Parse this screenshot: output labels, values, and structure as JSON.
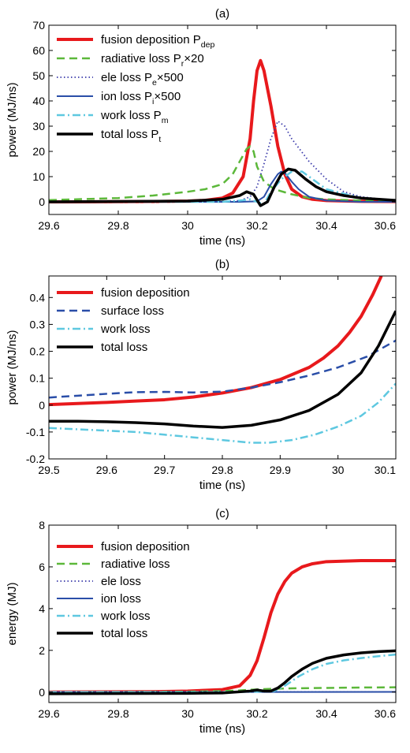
{
  "chart_data": [
    {
      "type": "line",
      "title": "(a)",
      "xlabel": "time (ns)",
      "ylabel": "power (MJ/ns)",
      "xlim": [
        29.6,
        30.6
      ],
      "ylim": [
        -5,
        70
      ],
      "xticks": [
        29.6,
        29.8,
        30,
        30.2,
        30.4,
        30.6
      ],
      "xtick_labels": [
        "29.6",
        "29.8",
        "30",
        "30.2",
        "30.4",
        "30.6"
      ],
      "yticks": [
        0,
        10,
        20,
        30,
        40,
        50,
        60,
        70
      ],
      "ytick_labels": [
        "0",
        "10",
        "20",
        "30",
        "40",
        "50",
        "60",
        "70"
      ],
      "grid": false,
      "legend_position": "top-left",
      "series": [
        {
          "name": "fusion deposition P",
          "sub": "dep",
          "suffix": "",
          "color": "#e8191c",
          "dash": "solid",
          "width": 4,
          "x": [
            29.6,
            29.9,
            30.0,
            30.05,
            30.1,
            30.13,
            30.16,
            30.18,
            30.19,
            30.2,
            30.21,
            30.22,
            30.24,
            30.26,
            30.28,
            30.3,
            30.33,
            30.36,
            30.4,
            30.5,
            30.6
          ],
          "y": [
            0,
            0.1,
            0.3,
            0.6,
            1.5,
            3.5,
            10,
            25,
            40,
            52,
            56,
            52,
            38,
            22,
            11,
            5,
            2,
            1,
            0.5,
            0.2,
            0.1
          ]
        },
        {
          "name": "radiative loss P",
          "sub": "r",
          "suffix": "×20",
          "color": "#5cb83a",
          "dash": "10,6",
          "width": 2.5,
          "x": [
            29.6,
            29.8,
            29.9,
            30.0,
            30.05,
            30.1,
            30.13,
            30.15,
            30.17,
            30.18,
            30.19,
            30.2,
            30.22,
            30.25,
            30.3,
            30.35,
            30.4,
            30.5,
            30.6
          ],
          "y": [
            0.7,
            1.5,
            2.5,
            4,
            5,
            7,
            11,
            16,
            21,
            22,
            20,
            14,
            8,
            5,
            3,
            1.5,
            1,
            0.5,
            0.3
          ]
        },
        {
          "name": "ele loss P",
          "sub": "e",
          "suffix": "×500",
          "color": "#3a3aaa",
          "dash": "1.5,3",
          "width": 1.8,
          "x": [
            29.6,
            30.1,
            30.15,
            30.18,
            30.2,
            30.22,
            30.24,
            30.26,
            30.28,
            30.3,
            30.35,
            30.4,
            30.45,
            30.5,
            30.6
          ],
          "y": [
            0,
            0.1,
            0.5,
            2,
            6,
            15,
            25,
            32,
            30,
            25,
            16,
            9,
            4,
            2,
            0.5
          ]
        },
        {
          "name": "ion loss P",
          "sub": "i",
          "suffix": "×500",
          "color": "#2a4ea8",
          "dash": "solid",
          "width": 2,
          "x": [
            29.6,
            30.15,
            30.2,
            30.22,
            30.24,
            30.26,
            30.27,
            30.28,
            30.3,
            30.32,
            30.35,
            30.4,
            30.5,
            30.6
          ],
          "y": [
            0,
            0,
            0.2,
            2,
            7,
            11,
            12,
            11.5,
            8,
            5,
            2,
            0.5,
            0,
            0
          ]
        },
        {
          "name": "work loss P",
          "sub": "m",
          "suffix": "",
          "color": "#5ec8e0",
          "dash": "10,4,2,4",
          "width": 2.5,
          "x": [
            29.6,
            30.1,
            30.15,
            30.18,
            30.2,
            30.22,
            30.24,
            30.27,
            30.3,
            30.33,
            30.37,
            30.4,
            30.5,
            30.6
          ],
          "y": [
            0,
            0,
            0.5,
            1,
            0,
            -1,
            4,
            9,
            12,
            12,
            8,
            5,
            1.5,
            0.5
          ]
        },
        {
          "name": "total loss P",
          "sub": "t",
          "suffix": "",
          "color": "#000000",
          "dash": "solid",
          "width": 3.5,
          "x": [
            29.6,
            30.0,
            30.1,
            30.15,
            30.17,
            30.19,
            30.21,
            30.23,
            30.25,
            30.27,
            30.29,
            30.31,
            30.34,
            30.37,
            30.4,
            30.45,
            30.5,
            30.6
          ],
          "y": [
            0,
            0.3,
            1,
            2.5,
            4,
            3,
            -1.5,
            0,
            6,
            11,
            13,
            12.5,
            9,
            6,
            4,
            2.5,
            1.5,
            0.6
          ]
        }
      ]
    },
    {
      "type": "line",
      "title": "(b)",
      "xlabel": "time (ns)",
      "ylabel": "power (MJ/ns)",
      "xlim": [
        29.5,
        30.1
      ],
      "ylim": [
        -0.2,
        0.48
      ],
      "xticks": [
        29.5,
        29.6,
        29.7,
        29.8,
        29.9,
        30,
        30.1
      ],
      "xtick_labels": [
        "29.5",
        "29.6",
        "29.7",
        "29.8",
        "29.9",
        "30",
        "30.1"
      ],
      "yticks": [
        -0.2,
        -0.1,
        0,
        0.1,
        0.2,
        0.3,
        0.4
      ],
      "ytick_labels": [
        "-0.2",
        "-0.1",
        "0",
        "0.1",
        "0.2",
        "0.3",
        "0.4"
      ],
      "grid": false,
      "legend_position": "top-left",
      "series": [
        {
          "name": "fusion deposition",
          "sub": "",
          "suffix": "",
          "color": "#e8191c",
          "dash": "solid",
          "width": 4,
          "x": [
            29.5,
            29.55,
            29.6,
            29.65,
            29.7,
            29.75,
            29.8,
            29.85,
            29.9,
            29.95,
            29.975,
            30.0,
            30.02,
            30.04,
            30.06,
            30.075
          ],
          "y": [
            0.002,
            0.006,
            0.01,
            0.015,
            0.02,
            0.03,
            0.045,
            0.065,
            0.095,
            0.14,
            0.175,
            0.22,
            0.27,
            0.33,
            0.41,
            0.48
          ]
        },
        {
          "name": "surface loss",
          "sub": "",
          "suffix": "",
          "color": "#2a4ea8",
          "dash": "10,6",
          "width": 2.5,
          "x": [
            29.5,
            29.55,
            29.6,
            29.65,
            29.7,
            29.75,
            29.8,
            29.85,
            29.9,
            29.95,
            30.0,
            30.05,
            30.1
          ],
          "y": [
            0.028,
            0.035,
            0.042,
            0.048,
            0.049,
            0.047,
            0.05,
            0.065,
            0.085,
            0.11,
            0.14,
            0.18,
            0.24
          ]
        },
        {
          "name": "work loss",
          "sub": "",
          "suffix": "",
          "color": "#5ec8e0",
          "dash": "10,4,2,4",
          "width": 2.5,
          "x": [
            29.5,
            29.55,
            29.6,
            29.65,
            29.7,
            29.75,
            29.8,
            29.85,
            29.88,
            29.92,
            29.96,
            30.0,
            30.04,
            30.07,
            30.1
          ],
          "y": [
            -0.085,
            -0.09,
            -0.095,
            -0.1,
            -0.11,
            -0.12,
            -0.13,
            -0.14,
            -0.14,
            -0.13,
            -0.11,
            -0.08,
            -0.04,
            0.01,
            0.08
          ]
        },
        {
          "name": "total loss",
          "sub": "",
          "suffix": "",
          "color": "#000000",
          "dash": "solid",
          "width": 3.5,
          "x": [
            29.5,
            29.55,
            29.6,
            29.65,
            29.7,
            29.75,
            29.8,
            29.85,
            29.9,
            29.95,
            30.0,
            30.04,
            30.07,
            30.1
          ],
          "y": [
            -0.06,
            -0.06,
            -0.062,
            -0.065,
            -0.07,
            -0.078,
            -0.083,
            -0.075,
            -0.055,
            -0.02,
            0.04,
            0.12,
            0.22,
            0.35
          ]
        }
      ]
    },
    {
      "type": "line",
      "title": "(c)",
      "xlabel": "time (ns)",
      "ylabel": "energy (MJ)",
      "xlim": [
        29.6,
        30.6
      ],
      "ylim": [
        -0.5,
        8
      ],
      "xticks": [
        29.6,
        29.8,
        30,
        30.2,
        30.4,
        30.6
      ],
      "xtick_labels": [
        "29.6",
        "29.8",
        "30",
        "30.2",
        "30.4",
        "30.6"
      ],
      "yticks": [
        0,
        2,
        4,
        6,
        8
      ],
      "ytick_labels": [
        "0",
        "2",
        "4",
        "6",
        "8"
      ],
      "grid": false,
      "legend_position": "top-left",
      "series": [
        {
          "name": "fusion deposition",
          "sub": "",
          "suffix": "",
          "color": "#e8191c",
          "dash": "solid",
          "width": 4,
          "x": [
            29.6,
            29.9,
            30.0,
            30.1,
            30.15,
            30.18,
            30.2,
            30.22,
            30.24,
            30.26,
            30.28,
            30.3,
            30.33,
            30.36,
            30.4,
            30.5,
            30.6
          ],
          "y": [
            0,
            0.02,
            0.05,
            0.12,
            0.3,
            0.8,
            1.5,
            2.6,
            3.8,
            4.7,
            5.3,
            5.7,
            6.0,
            6.15,
            6.25,
            6.3,
            6.3
          ]
        },
        {
          "name": "radiative loss",
          "sub": "",
          "suffix": "",
          "color": "#5cb83a",
          "dash": "10,6",
          "width": 2.5,
          "x": [
            29.6,
            29.9,
            30.0,
            30.1,
            30.15,
            30.2,
            30.25,
            30.3,
            30.4,
            30.5,
            30.6
          ],
          "y": [
            0,
            0.01,
            0.02,
            0.05,
            0.08,
            0.13,
            0.16,
            0.18,
            0.2,
            0.22,
            0.23
          ]
        },
        {
          "name": "ele loss",
          "sub": "",
          "suffix": "",
          "color": "#3a3aaa",
          "dash": "1.5,3",
          "width": 1.8,
          "x": [
            29.6,
            30.6
          ],
          "y": [
            0.005,
            0.01
          ]
        },
        {
          "name": "ion loss",
          "sub": "",
          "suffix": "",
          "color": "#2a4ea8",
          "dash": "solid",
          "width": 2,
          "x": [
            29.6,
            30.6
          ],
          "y": [
            0,
            0.01
          ]
        },
        {
          "name": "work loss",
          "sub": "",
          "suffix": "",
          "color": "#5ec8e0",
          "dash": "10,4,2,4",
          "width": 2.5,
          "x": [
            29.6,
            30.1,
            30.2,
            30.25,
            30.28,
            30.32,
            30.36,
            30.4,
            30.45,
            30.5,
            30.55,
            30.6
          ],
          "y": [
            0,
            0,
            0.02,
            0.05,
            0.3,
            0.75,
            1.1,
            1.35,
            1.52,
            1.63,
            1.72,
            1.8
          ]
        },
        {
          "name": "total loss",
          "sub": "",
          "suffix": "",
          "color": "#000000",
          "dash": "solid",
          "width": 3.5,
          "x": [
            29.6,
            30.0,
            30.1,
            30.18,
            30.2,
            30.22,
            30.24,
            30.26,
            30.28,
            30.3,
            30.33,
            30.36,
            30.4,
            30.45,
            30.5,
            30.55,
            30.6
          ],
          "y": [
            -0.08,
            -0.06,
            -0.04,
            0.05,
            0.1,
            0.05,
            0.05,
            0.2,
            0.45,
            0.75,
            1.1,
            1.38,
            1.62,
            1.78,
            1.88,
            1.94,
            1.98
          ]
        }
      ]
    }
  ]
}
